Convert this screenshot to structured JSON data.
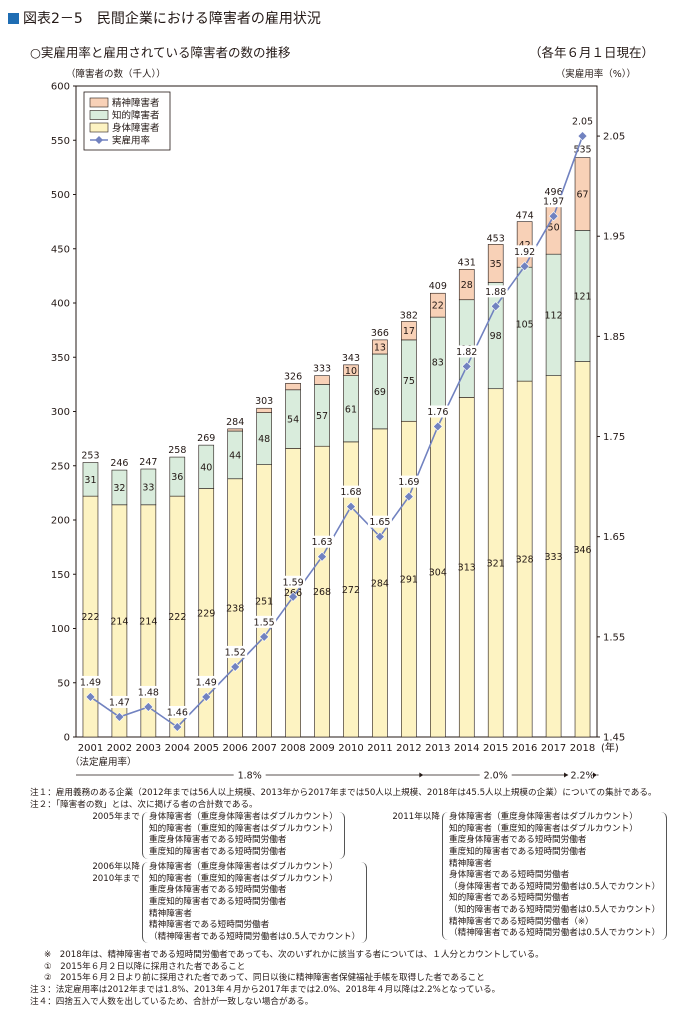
{
  "header": {
    "title": "図表2－5　民間企業における障害者の雇用状況",
    "subtitle": "○実雇用率と雇用されている障害者の数の推移",
    "as_of": "（各年６月１日現在）"
  },
  "colors": {
    "physical": "#fdf3c2",
    "intellectual": "#d9ecdc",
    "mental": "#f8d1b7",
    "rate_line": "#7182c0",
    "title_square": "#1f6db3"
  },
  "chart_data": {
    "type": "bar",
    "stacked": true,
    "categories": [
      "2001",
      "2002",
      "2003",
      "2004",
      "2005",
      "2006",
      "2007",
      "2008",
      "2009",
      "2010",
      "2011",
      "2012",
      "2013",
      "2014",
      "2015",
      "2016",
      "2017",
      "2018"
    ],
    "x_suffix": "(年)",
    "series": [
      {
        "name": "身体障害者",
        "color_key": "physical",
        "values": [
          222,
          214,
          214,
          222,
          229,
          238,
          251,
          266,
          268,
          272,
          284,
          291,
          304,
          313,
          321,
          328,
          333,
          346
        ]
      },
      {
        "name": "知的障害者",
        "color_key": "intellectual",
        "values": [
          31,
          32,
          33,
          36,
          40,
          44,
          48,
          54,
          57,
          61,
          69,
          75,
          83,
          90,
          98,
          105,
          112,
          121
        ]
      },
      {
        "name": "精神障害者",
        "color_key": "mental",
        "values": [
          null,
          null,
          null,
          null,
          null,
          2,
          4,
          6,
          8,
          10,
          13,
          17,
          22,
          28,
          35,
          42,
          50,
          67
        ]
      }
    ],
    "totals": [
      253,
      246,
      247,
      258,
      269,
      284,
      303,
      326,
      333,
      343,
      366,
      382,
      409,
      431,
      453,
      474,
      496,
      535
    ],
    "line": {
      "name": "実雇用率",
      "axis": "right",
      "values": [
        1.49,
        1.47,
        1.48,
        1.46,
        1.49,
        1.52,
        1.55,
        1.59,
        1.63,
        1.68,
        1.65,
        1.69,
        1.76,
        1.82,
        1.88,
        1.92,
        1.97,
        2.05
      ]
    },
    "ylabel_left": "（障害者の数（千人））",
    "ylabel_right": "（実雇用率（%））",
    "ylim_left": [
      0,
      600
    ],
    "yticks_left": [
      "0",
      "50",
      "100",
      "150",
      "200",
      "250",
      "300",
      "350",
      "400",
      "450",
      "500",
      "550",
      "600"
    ],
    "ylim_right": [
      1.45,
      2.1
    ],
    "yticks_right": [
      "1.45",
      "1.55",
      "1.65",
      "1.75",
      "1.85",
      "1.95",
      "2.05"
    ],
    "legend_position": "top-left",
    "legal_rate": {
      "label": "（法定雇用率）",
      "segments": [
        {
          "text": "1.8%",
          "from": "2001",
          "to": "2012"
        },
        {
          "text": "2.0%",
          "from": "2013",
          "to": "2017"
        },
        {
          "text": "2.2%",
          "from": "2018",
          "to": "2018"
        }
      ]
    }
  },
  "notes": {
    "n1": "注１：雇用義務のある企業（2012年までは56人以上規模、2013年から2017年までは50人以上規模、2018年は45.5人以上規模の企業）についての集計である。",
    "n2": "注２：「障害者の数」とは、次に掲げる者の合計数である。",
    "b1_label": "2005年まで",
    "b1_items": [
      "身体障害者（重度身体障害者はダブルカウント）",
      "知的障害者（重度知的障害者はダブルカウント）",
      "重度身体障害者である短時間労働者",
      "重度知的障害者である短時間労働者"
    ],
    "b2_label": "2011年以降",
    "b2_items": [
      "身体障害者（重度身体障害者はダブルカウント）",
      "知的障害者（重度知的障害者はダブルカウント）",
      "重度身体障害者である短時間労働者",
      "重度知的障害者である短時間労働者",
      "精神障害者",
      "身体障害者である短時間労働者",
      "（身体障害者である短時間労働者は0.5人でカウント）",
      "知的障害者である短時間労働者",
      "（知的障害者である短時間労働者は0.5人でカウント）",
      "精神障害者である短時間労働者（※）",
      "（精神障害者である短時間労働者は0.5人でカウント）"
    ],
    "b3_label_1": "2006年以降",
    "b3_label_2": "2010年まで",
    "b3_items": [
      "身体障害者（重度身体障害者はダブルカウント）",
      "知的障害者（重度知的障害者はダブルカウント）",
      "重度身体障害者である短時間労働者",
      "重度知的障害者である短時間労働者",
      "精神障害者",
      "精神障害者である短時間労働者",
      "（精神障害者である短時間労働者は0.5人でカウント）"
    ],
    "star": "※　2018年は、精神障害者である短時間労働者であっても、次のいずれかに該当する者については、１人分とカウントしている。",
    "star1": "①　2015年６月２日以降に採用された者であること",
    "star2": "②　2015年６月２日より前に採用された者であって、同日以後に精神障害者保健福祉手帳を取得した者であること",
    "n3": "注３：法定雇用率は2012年までは1.8%、2013年４月から2017年までは2.0%、2018年４月以降は2.2%となっている。",
    "n4": "注４：四捨五入で人数を出しているため、合計が一致しない場合がある。"
  }
}
